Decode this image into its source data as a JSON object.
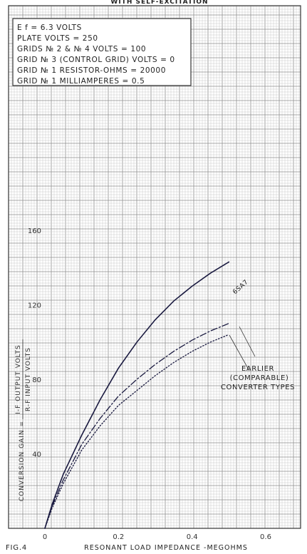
{
  "header_fragment": "WITH SELF-EXCITATION",
  "conditions": [
    "E f = 6.3 VOLTS",
    "PLATE VOLTS = 250",
    "GRIDS № 2 & № 4 VOLTS = 100",
    "GRID № 3 (CONTROL GRID) VOLTS = 0",
    "GRID № 1 RESISTOR-OHMS = 20000",
    "GRID № 1 MILLIAMPERES = 0.5"
  ],
  "figure_label": "FIG.4",
  "chart_data": {
    "type": "line",
    "xlabel": "RESONANT LOAD IMPEDANCE -MEGOHMS",
    "ylabel": "CONVERSION GAIN = (I-F OUTPUT VOLTS) / (R-F INPUT VOLTS)",
    "ylabel_parts": {
      "prefix": "CONVERSION GAIN =",
      "numerator": "I-F OUTPUT VOLTS",
      "denominator": "R-F INPUT VOLTS"
    },
    "xlim": [
      0,
      0.7
    ],
    "ylim": [
      0,
      160
    ],
    "x_ticks": [
      0,
      0.2,
      0.4,
      0.6
    ],
    "x_tick_labels": [
      "0",
      "0.2",
      "0.4",
      "0.6"
    ],
    "y_ticks": [
      40,
      80,
      120,
      160
    ],
    "y_tick_labels": [
      "40",
      "80",
      "120",
      "160"
    ],
    "grid": true,
    "series": [
      {
        "name": "6SA7",
        "style": "solid",
        "color": "#1a1a40",
        "x": [
          0,
          0.02,
          0.05,
          0.1,
          0.15,
          0.2,
          0.25,
          0.3,
          0.35,
          0.4,
          0.45,
          0.5
        ],
        "y": [
          0,
          13,
          29,
          50,
          69,
          86,
          100,
          112,
          122,
          130,
          137,
          143
        ]
      },
      {
        "name": "EARLIER (COMPARABLE) CONVERTER TYPES",
        "style": "dash-dot",
        "color": "#1a1a40",
        "x": [
          0,
          0.02,
          0.05,
          0.1,
          0.15,
          0.2,
          0.25,
          0.3,
          0.35,
          0.4,
          0.45,
          0.5
        ],
        "y": [
          0,
          12,
          26,
          45,
          59,
          71,
          80,
          88,
          95,
          101,
          106,
          110
        ]
      },
      {
        "name": "EARLIER (COMPARABLE) CONVERTER TYPES",
        "style": "dotted",
        "color": "#1a1a40",
        "x": [
          0,
          0.02,
          0.05,
          0.1,
          0.15,
          0.2,
          0.25,
          0.3,
          0.35,
          0.4,
          0.45,
          0.5
        ],
        "y": [
          0,
          11,
          24,
          42,
          55,
          66,
          74,
          82,
          89,
          95,
          100,
          104
        ]
      }
    ],
    "annotations": {
      "curve_label": "6SA7",
      "group_label_lines": [
        "EARLIER",
        "(COMPARABLE)",
        "CONVERTER TYPES"
      ]
    }
  }
}
